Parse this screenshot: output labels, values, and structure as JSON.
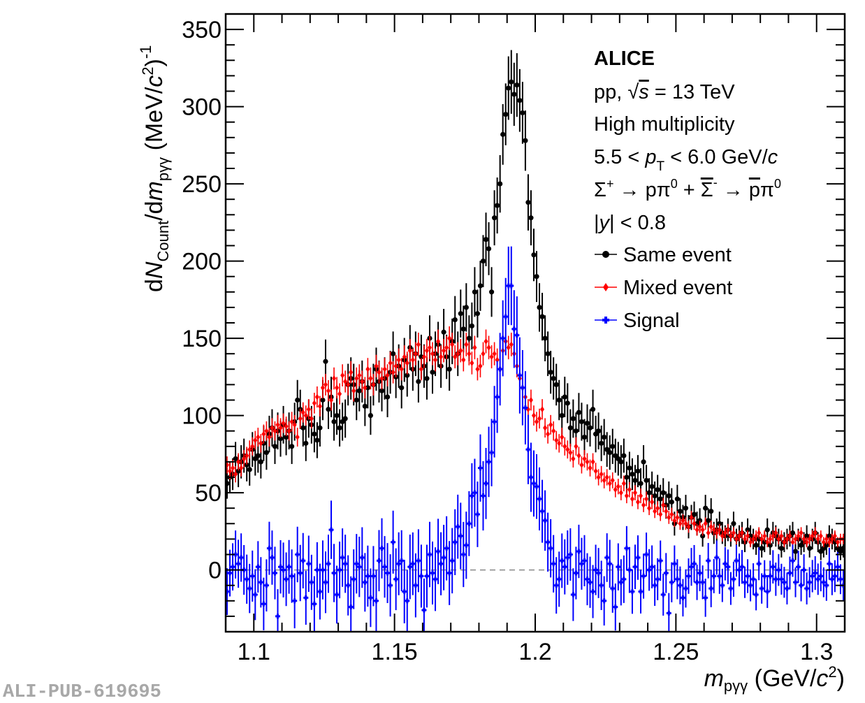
{
  "watermark": "ALI-PUB-619695",
  "chart_data": {
    "type": "scatter",
    "title": "",
    "xlabel": "m_pγγ (GeV/c²)",
    "xlabel_parts": {
      "var": "m",
      "sub": "pγγ",
      "unit_pre": " (GeV/",
      "unit_var": "c",
      "unit_sup": "2",
      "unit_post": ")"
    },
    "ylabel": "dN_Count/dm_pγγ (MeV/c²)⁻¹",
    "ylabel_parts": {
      "d1": "d",
      "N": "N",
      "sub1": "Count",
      "slash": "/d",
      "m": "m",
      "sub2": "pγγ",
      "unit_pre": " (MeV/",
      "unit_var": "c",
      "unit_sup2": "2",
      "unit_post": ")",
      "unit_sup": "-1"
    },
    "xlim": [
      1.09,
      1.31
    ],
    "ylim": [
      -40,
      360
    ],
    "xticks": [
      1.1,
      1.15,
      1.2,
      1.25,
      1.3
    ],
    "xtick_labels": [
      "1.1",
      "1.15",
      "1.2",
      "1.25",
      "1.3"
    ],
    "yticks": [
      0,
      50,
      100,
      150,
      200,
      250,
      300,
      350
    ],
    "ytick_labels": [
      "0",
      "50",
      "100",
      "150",
      "200",
      "250",
      "300",
      "350"
    ],
    "grid": false,
    "reference_line": {
      "y": 0,
      "style": "dashed",
      "color": "#888888"
    },
    "annotations": {
      "experiment": "ALICE",
      "system_pre": "pp, ",
      "system_sqrt": "√",
      "system_s": "s",
      "system_post": " = 13 TeV",
      "multiplicity": "High multiplicity",
      "pt_pre": "5.5 < ",
      "pt_var": "p",
      "pt_sub": "T",
      "pt_post": " < 6.0 GeV/",
      "pt_c": "c",
      "decay_sigma": "Σ",
      "decay_sup1": "+",
      "decay_mid": " → pπ",
      "decay_sup0": "0",
      "decay_plus": " + ",
      "decay_sigma_bar": "Σ",
      "decay_sup2": "-",
      "decay_arrow": " → ",
      "decay_pbar": "p",
      "decay_pi": "π",
      "decay_sup3": "0",
      "rapidity_pre": "|",
      "rapidity_var": "y",
      "rapidity_post": "| < 0.8"
    },
    "legend_position": "top-right",
    "x_start": 1.0905,
    "x_step": 0.001,
    "series": [
      {
        "name": "Same event",
        "color": "#000000",
        "marker": "circle",
        "values": [
          56,
          60,
          62,
          72,
          64,
          70,
          74,
          68,
          65,
          78,
          72,
          74,
          70,
          82,
          76,
          88,
          92,
          80,
          90,
          85,
          94,
          86,
          90,
          80,
          96,
          110,
          104,
          92,
          82,
          98,
          94,
          88,
          84,
          92,
          110,
          135,
          104,
          112,
          96,
          100,
          92,
          96,
          98,
          120,
          124,
          120,
          110,
          116,
          122,
          106,
          118,
          100,
          120,
          130,
          122,
          116,
          124,
          112,
          128,
          140,
          125,
          132,
          118,
          136,
          126,
          144,
          130,
          140,
          122,
          138,
          132,
          124,
          150,
          128,
          140,
          146,
          132,
          154,
          138,
          130,
          148,
          162,
          140,
          166,
          156,
          170,
          150,
          158,
          180,
          166,
          184,
          200,
          214,
          208,
          180,
          228,
          236,
          250,
          282,
          295,
          312,
          316,
          308,
          314,
          304,
          296,
          278,
          238,
          228,
          204,
          190,
          170,
          164,
          150,
          140,
          128,
          124,
          120,
          110,
          100,
          112,
          108,
          92,
          98,
          90,
          102,
          96,
          86,
          95,
          92,
          104,
          88,
          90,
          82,
          86,
          78,
          76,
          80,
          74,
          72,
          70,
          74,
          60,
          66,
          62,
          58,
          64,
          56,
          70,
          58,
          50,
          54,
          48,
          52,
          46,
          50,
          42,
          48,
          44,
          30,
          46,
          38,
          34,
          40,
          28,
          34,
          36,
          30,
          32,
          22,
          40,
          32,
          38,
          24,
          26,
          30,
          24,
          22,
          26,
          22,
          30,
          20,
          22,
          24,
          18,
          26,
          22,
          20,
          16,
          20,
          14,
          18,
          26,
          16,
          24,
          22,
          20,
          14,
          18,
          20,
          22,
          24,
          12,
          20,
          16,
          18,
          22,
          14,
          20,
          24,
          18,
          12,
          14,
          16,
          22,
          20,
          18,
          14,
          12,
          14,
          10,
          12,
          14,
          16,
          12,
          14
        ]
      },
      {
        "name": "Mixed event",
        "color": "#ff0000",
        "marker": "diamond",
        "values": [
          68,
          64,
          66,
          62,
          70,
          66,
          72,
          74,
          78,
          80,
          84,
          86,
          82,
          88,
          90,
          86,
          92,
          90,
          94,
          92,
          95,
          93,
          90,
          96,
          94,
          86,
          98,
          102,
          100,
          104,
          98,
          108,
          112,
          106,
          118,
          120,
          116,
          110,
          124,
          118,
          114,
          126,
          122,
          120,
          128,
          116,
          124,
          126,
          122,
          118,
          130,
          124,
          120,
          132,
          128,
          124,
          130,
          126,
          134,
          128,
          132,
          136,
          130,
          138,
          134,
          142,
          136,
          140,
          146,
          130,
          138,
          142,
          144,
          140,
          136,
          148,
          138,
          142,
          144,
          150,
          146,
          138,
          140,
          142,
          136,
          146,
          140,
          134,
          144,
          130,
          132,
          140,
          148,
          144,
          138,
          140,
          136,
          130,
          142,
          148,
          144,
          146,
          140,
          132,
          124,
          118,
          112,
          104,
          110,
          100,
          96,
          98,
          104,
          92,
          88,
          94,
          90,
          84,
          82,
          86,
          80,
          78,
          76,
          72,
          80,
          74,
          68,
          72,
          70,
          66,
          70,
          64,
          60,
          62,
          58,
          60,
          56,
          58,
          52,
          54,
          50,
          56,
          48,
          52,
          46,
          50,
          44,
          48,
          42,
          46,
          40,
          44,
          38,
          40,
          36,
          42,
          38,
          34,
          36,
          32,
          34,
          30,
          32,
          30,
          28,
          34,
          30,
          26,
          28,
          26,
          30,
          24,
          28,
          26,
          24,
          26,
          22,
          24,
          26,
          22,
          24,
          20,
          22,
          24,
          20,
          22,
          18,
          20,
          22,
          24,
          20,
          22,
          18,
          20,
          22,
          24,
          20,
          22,
          18,
          20,
          22,
          18,
          20,
          22,
          24,
          20,
          18,
          20,
          22,
          24,
          20,
          22,
          18,
          20,
          18,
          20,
          22,
          18,
          20,
          20,
          19,
          21
        ]
      },
      {
        "name": "Signal",
        "color": "#0000ff",
        "marker": "cross",
        "values": [
          -14,
          -2,
          2,
          10,
          4,
          8,
          0,
          -6,
          -12,
          -4,
          -16,
          2,
          -8,
          -22,
          -10,
          14,
          8,
          -2,
          -30,
          2,
          0,
          -6,
          2,
          -4,
          -20,
          10,
          -2,
          6,
          -18,
          4,
          -8,
          -22,
          0,
          -14,
          0,
          -8,
          4,
          26,
          -2,
          -16,
          0,
          8,
          4,
          -10,
          -24,
          -6,
          4,
          2,
          8,
          -8,
          -4,
          -18,
          -4,
          -20,
          6,
          14,
          2,
          -2,
          -10,
          18,
          -6,
          4,
          6,
          -14,
          -20,
          2,
          4,
          -10,
          6,
          -4,
          -26,
          -4,
          10,
          -2,
          -6,
          12,
          4,
          8,
          14,
          -2,
          6,
          18,
          28,
          22,
          10,
          16,
          30,
          48,
          50,
          36,
          66,
          48,
          56,
          70,
          76,
          96,
          112,
          130,
          150,
          164,
          184,
          184,
          156,
          152,
          126,
          118,
          105,
          78,
          60,
          56,
          54,
          46,
          38,
          32,
          18,
          14,
          4,
          -10,
          -6,
          6,
          2,
          8,
          10,
          -16,
          -2,
          12,
          4,
          6,
          -6,
          -8,
          -14,
          0,
          -2,
          -10,
          -20,
          8,
          4,
          -12,
          -24,
          2,
          -8,
          -6,
          14,
          0,
          -14,
          2,
          8,
          -14,
          -4,
          10,
          0,
          2,
          -10,
          -6,
          6,
          -16,
          -2,
          -28,
          -8,
          4,
          -6,
          -10,
          -18,
          -12,
          -4,
          2,
          4,
          -8,
          -2,
          -8,
          -18,
          6,
          -12,
          -4,
          8,
          -4,
          -10,
          4,
          2,
          -12,
          -6,
          6,
          0,
          2,
          -8,
          -4,
          -10,
          -6,
          -16,
          4,
          -12,
          -4,
          -14,
          -4,
          2,
          -6,
          0,
          -6,
          -8,
          -12,
          -2,
          6,
          -8,
          2,
          -10,
          0,
          -12,
          -8,
          -4,
          -2,
          -6,
          -4,
          -8,
          -10,
          4,
          -6,
          -4,
          2,
          -6,
          -10,
          -8,
          -4,
          -8
        ]
      }
    ]
  }
}
